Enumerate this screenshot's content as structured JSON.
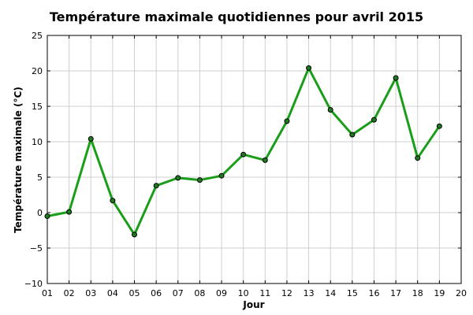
{
  "chart_data": {
    "type": "line",
    "title": "Température maximale quotidiennes pour avril 2015",
    "xlabel": "Jour",
    "ylabel": "Température maximale (°C)",
    "x_ticks": [
      "01",
      "02",
      "03",
      "04",
      "05",
      "06",
      "07",
      "08",
      "09",
      "10",
      "11",
      "12",
      "13",
      "14",
      "15",
      "16",
      "17",
      "18",
      "19",
      "20"
    ],
    "xlim": [
      1,
      20
    ],
    "ylim": [
      -10,
      25
    ],
    "y_ticks": [
      -10,
      -5,
      0,
      5,
      10,
      15,
      20,
      25
    ],
    "grid": true,
    "x": [
      1,
      2,
      3,
      4,
      5,
      6,
      7,
      8,
      9,
      10,
      11,
      12,
      13,
      14,
      15,
      16,
      17,
      18,
      19
    ],
    "series": [
      {
        "values": [
          -0.5,
          0.1,
          10.4,
          1.7,
          -3.1,
          3.8,
          4.9,
          4.6,
          5.2,
          8.2,
          7.4,
          12.9,
          20.4,
          14.5,
          11.0,
          13.1,
          19.0,
          7.7,
          12.2
        ],
        "color": "#1a9e1a",
        "marker_color": "#1f7a1f"
      }
    ]
  }
}
